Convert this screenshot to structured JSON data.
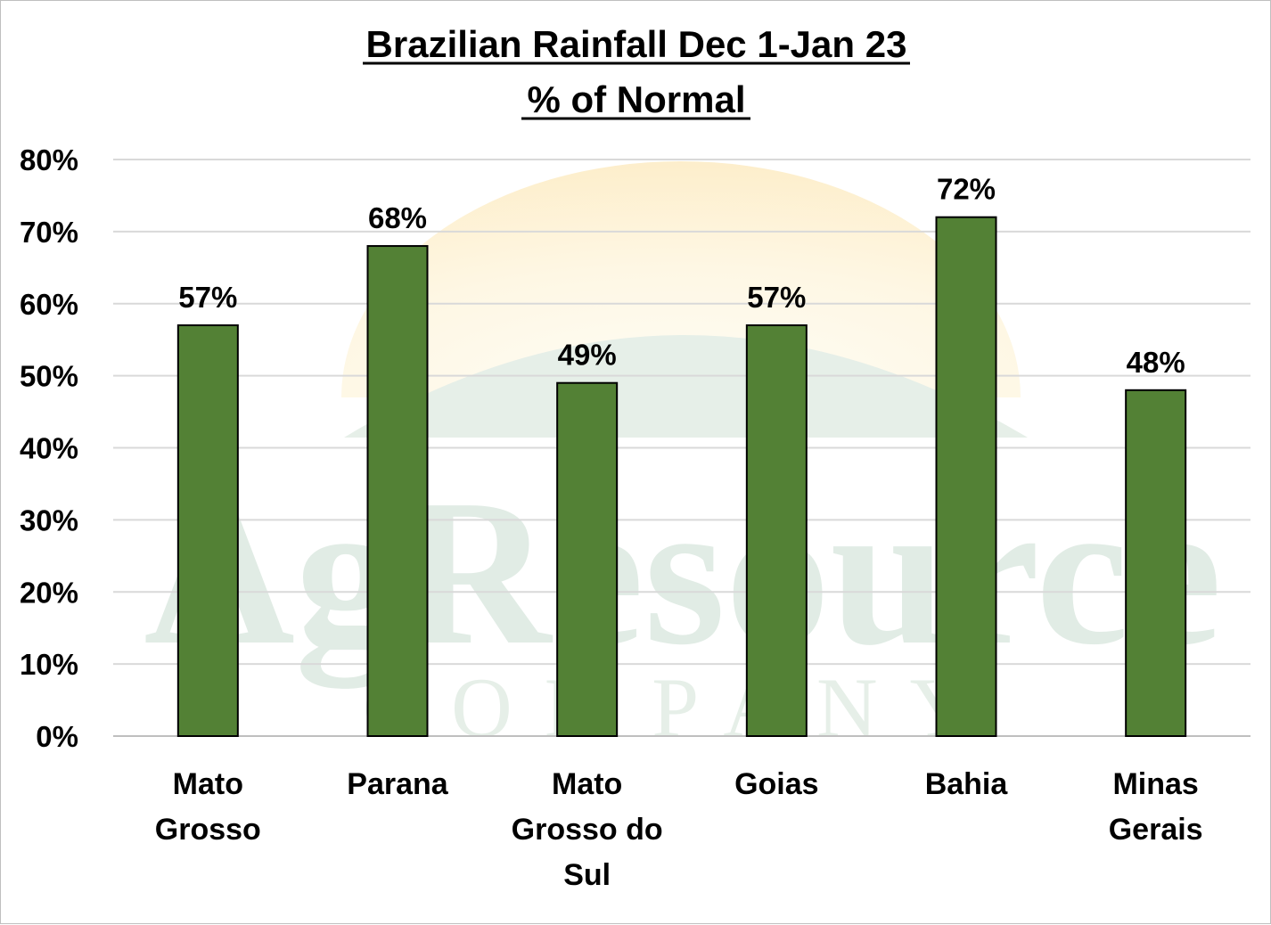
{
  "chart_data": {
    "type": "bar",
    "title": "Brazilian Rainfall Dec 1-Jan 23",
    "subtitle": "% of Normal",
    "categories": [
      "Mato Grosso",
      "Parana",
      "Mato Grosso do Sul",
      "Goias",
      "Bahia",
      "Minas Gerais"
    ],
    "category_lines": [
      [
        "Mato",
        "Grosso"
      ],
      [
        "Parana"
      ],
      [
        "Mato",
        "Grosso do",
        "Sul"
      ],
      [
        "Goias"
      ],
      [
        "Bahia"
      ],
      [
        "Minas",
        "Gerais"
      ]
    ],
    "values": [
      57,
      68,
      49,
      57,
      72,
      48
    ],
    "data_labels": [
      "57%",
      "68%",
      "49%",
      "57%",
      "72%",
      "48%"
    ],
    "y_ticks": [
      "0%",
      "10%",
      "20%",
      "30%",
      "40%",
      "50%",
      "60%",
      "70%",
      "80%"
    ],
    "ylim": [
      0,
      80
    ],
    "xlabel": "",
    "ylabel": "",
    "grid": true,
    "legend": "none",
    "bar_color": "#538135",
    "bar_edge_color": "#000000",
    "grid_color": "#d9d9d9"
  },
  "watermark": {
    "line1": "AgResource",
    "line2": "COMPANY",
    "text_color": "#e1ece5",
    "sun_color": "#fdf3dc",
    "hill_color": "#e6efe8"
  }
}
